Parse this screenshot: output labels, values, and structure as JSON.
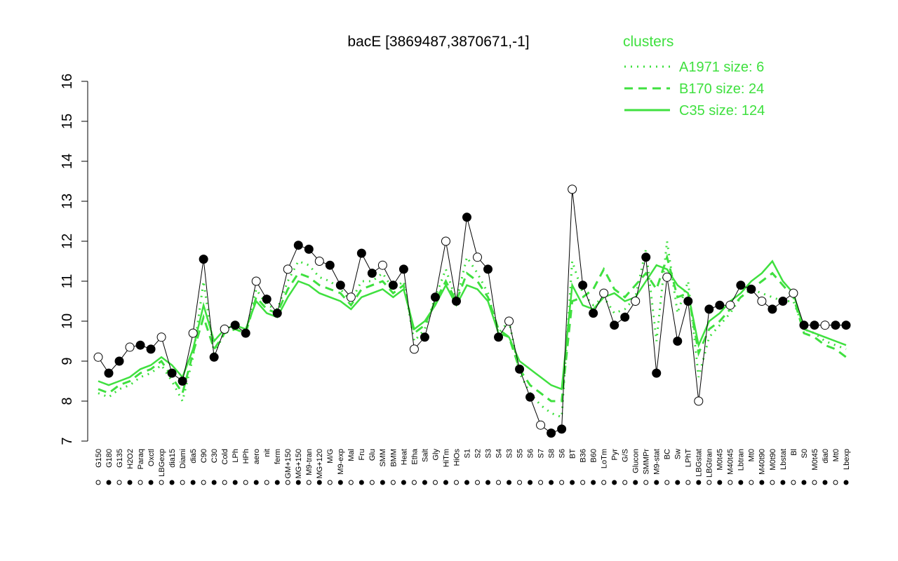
{
  "chart_data": {
    "type": "line",
    "title": "bacE [3869487,3870671,-1]",
    "legend_title": "clusters",
    "legend_position": "top-right",
    "ylim": [
      7,
      16
    ],
    "yticks": [
      7,
      8,
      9,
      10,
      11,
      12,
      13,
      14,
      15,
      16
    ],
    "categories": [
      "G150",
      "G180",
      "G135",
      "H2O2",
      "Paraq",
      "Oxctl",
      "LBGexp",
      "dia15",
      "Diami",
      "dia5",
      "C90",
      "C30",
      "Cold",
      "LPh",
      "HPh",
      "aero",
      "nit",
      "ferm",
      "GM+150",
      "MG+150",
      "M9-tran",
      "MG+120",
      "M/G",
      "M9-exp",
      "Mal",
      "Fru",
      "Glu",
      "SMM",
      "BMM",
      "Heat",
      "Etha",
      "Salt",
      "Gly",
      "HiTm",
      "HiOs",
      "S1",
      "S2",
      "S3",
      "S4",
      "S3",
      "S5",
      "S6",
      "S7",
      "S8",
      "S6",
      "BT",
      "B36",
      "B60",
      "LoTm",
      "Pyr",
      "G/S",
      "Glucon",
      "SMMPr",
      "M9-stat",
      "BC",
      "Sw",
      "LPhT",
      "LBGstat",
      "LBGtran",
      "M0t45",
      "M40t45",
      "Lbtran",
      "Mt0",
      "M40t90",
      "M0t90",
      "Lbstat",
      "Bl",
      "S0",
      "M0t45",
      "dia0",
      "Mt0",
      "Lbexp"
    ],
    "values": [
      9.1,
      8.7,
      9.0,
      9.35,
      9.4,
      9.3,
      9.6,
      8.7,
      8.5,
      9.7,
      11.55,
      9.1,
      9.8,
      9.9,
      9.7,
      11.0,
      10.55,
      10.2,
      11.3,
      11.9,
      11.8,
      11.5,
      11.4,
      10.9,
      10.6,
      11.7,
      11.2,
      11.4,
      10.9,
      11.3,
      9.3,
      9.6,
      10.6,
      12.0,
      10.5,
      12.6,
      11.6,
      11.3,
      9.6,
      10.0,
      8.8,
      8.1,
      7.4,
      7.2,
      7.3,
      13.3,
      10.9,
      10.2,
      10.7,
      9.9,
      10.1,
      10.5,
      11.6,
      8.7,
      11.1,
      9.5,
      10.5,
      8.0,
      10.3,
      10.4,
      10.4,
      10.9,
      10.8,
      10.5,
      10.3,
      10.5,
      10.7,
      9.9,
      9.9,
      9.9,
      9.9,
      9.9
    ],
    "series": [
      {
        "name": "A1971 size: 6",
        "color": "#3fe03f",
        "dash": "dotted",
        "values": [
          8.2,
          8.1,
          8.3,
          8.4,
          8.6,
          8.7,
          8.9,
          8.5,
          8.0,
          9.1,
          11.0,
          9.2,
          9.7,
          9.8,
          9.7,
          10.8,
          10.4,
          10.3,
          11.0,
          11.5,
          11.4,
          11.1,
          11.0,
          10.8,
          10.5,
          11.0,
          11.0,
          11.2,
          10.8,
          11.0,
          9.5,
          9.8,
          10.6,
          11.3,
          10.5,
          11.6,
          11.2,
          10.7,
          9.7,
          10.0,
          8.7,
          8.2,
          7.9,
          7.7,
          7.6,
          11.5,
          10.7,
          10.4,
          10.6,
          10.2,
          10.3,
          10.6,
          11.8,
          9.5,
          12.0,
          10.2,
          11.0,
          8.6,
          9.6,
          9.9,
          10.2,
          10.6,
          10.8,
          10.7,
          10.6,
          10.5,
          10.5,
          9.8,
          9.7,
          9.5,
          9.4,
          9.3
        ]
      },
      {
        "name": "B170 size: 24",
        "color": "#3fe03f",
        "dash": "dashed",
        "values": [
          8.3,
          8.2,
          8.4,
          8.5,
          8.7,
          8.8,
          9.0,
          8.6,
          8.2,
          9.2,
          10.1,
          9.3,
          9.7,
          9.8,
          9.7,
          10.6,
          10.3,
          10.2,
          10.8,
          11.2,
          11.1,
          10.9,
          10.8,
          10.7,
          10.4,
          10.8,
          10.9,
          11.0,
          10.7,
          10.9,
          9.7,
          9.9,
          10.5,
          11.0,
          10.5,
          11.2,
          11.0,
          10.6,
          9.8,
          9.6,
          8.8,
          8.4,
          8.2,
          8.0,
          8.0,
          10.5,
          10.6,
          10.8,
          11.3,
          10.8,
          10.6,
          10.9,
          11.2,
          10.8,
          11.6,
          10.6,
          10.7,
          9.2,
          9.8,
          10.0,
          10.3,
          10.6,
          10.8,
          11.0,
          11.2,
          10.9,
          10.6,
          9.7,
          9.6,
          9.4,
          9.3,
          9.1
        ]
      },
      {
        "name": "C35 size: 124",
        "color": "#3fe03f",
        "dash": "solid",
        "values": [
          8.5,
          8.4,
          8.5,
          8.6,
          8.8,
          8.9,
          9.1,
          8.9,
          8.6,
          9.3,
          10.4,
          9.5,
          9.8,
          9.9,
          9.8,
          10.5,
          10.2,
          10.1,
          10.6,
          11.0,
          10.9,
          10.7,
          10.6,
          10.5,
          10.3,
          10.6,
          10.7,
          10.8,
          10.6,
          10.8,
          9.8,
          10.0,
          10.4,
          10.9,
          10.4,
          10.9,
          10.8,
          10.5,
          9.7,
          9.6,
          9.0,
          8.8,
          8.6,
          8.4,
          8.3,
          10.9,
          10.4,
          10.3,
          10.6,
          10.7,
          10.5,
          10.6,
          11.0,
          11.4,
          11.3,
          10.9,
          10.7,
          9.4,
          10.0,
          10.2,
          10.5,
          10.7,
          11.0,
          11.2,
          11.5,
          11.0,
          10.7,
          9.8,
          9.7,
          9.6,
          9.5,
          9.4
        ]
      }
    ],
    "color": "#000000"
  }
}
